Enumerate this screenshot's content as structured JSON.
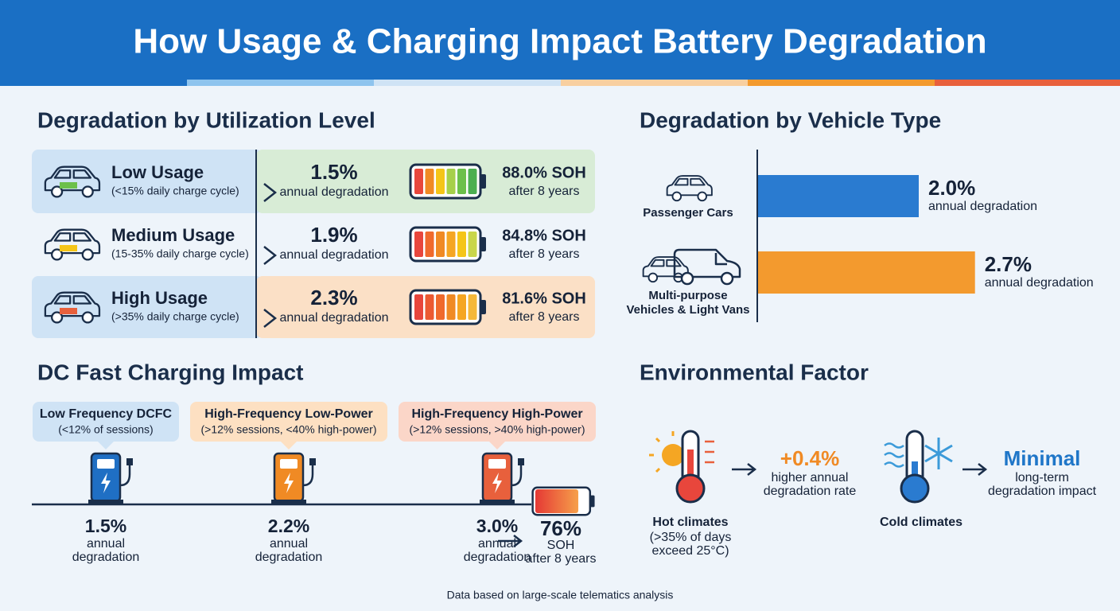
{
  "header": {
    "title": "How Usage & Charging Impact Battery Degradation"
  },
  "utilization": {
    "title": "Degradation by Utilization Level",
    "rows": [
      {
        "label": "Low Usage",
        "note": "(<15% daily charge cycle)",
        "rate": "1.5%",
        "rate_label": "annual degradation",
        "soh": "88.0% SOH",
        "soh_label": "after 8 years"
      },
      {
        "label": "Medium Usage",
        "note": "(15-35% daily charge cycle)",
        "rate": "1.9%",
        "rate_label": "annual degradation",
        "soh": "84.8% SOH",
        "soh_label": "after 8 years"
      },
      {
        "label": "High Usage",
        "note": "(>35% daily charge cycle)",
        "rate": "2.3%",
        "rate_label": "annual degradation",
        "soh": "81.6% SOH",
        "soh_label": "after 8 years"
      }
    ]
  },
  "chart_data": {
    "type": "bar",
    "orientation": "horizontal",
    "title": "Degradation by Vehicle Type",
    "categories": [
      [
        "Passenger Cars"
      ],
      [
        "Multi-purpose",
        "Vehicles & Light Vans"
      ]
    ],
    "values": [
      2.0,
      2.7
    ],
    "value_labels": [
      "2.0%",
      "2.7%"
    ],
    "value_notes": [
      "annual degradation",
      "annual degradation"
    ],
    "colors": [
      "#2a7bd0",
      "#f39a2e"
    ]
  },
  "dcfc": {
    "title": "DC Fast Charging Impact",
    "stations": [
      {
        "label": "Low Frequency DCFC",
        "note": "(<12% of sessions)",
        "rate": "1.5%",
        "rate_label": [
          "annual",
          "degradation"
        ]
      },
      {
        "label": "High-Frequency Low-Power",
        "note": "(>12% sessions, <40% high-power)",
        "rate": "2.2%",
        "rate_label": [
          "annual",
          "degradation"
        ]
      },
      {
        "label": "High-Frequency High-Power",
        "note": "(>12% sessions, >40% high-power)",
        "rate": "3.0%",
        "rate_label": [
          "annual",
          "degradation"
        ]
      }
    ],
    "result": {
      "value": "76%",
      "label": "SOH",
      "note": "after 8 years"
    }
  },
  "environment": {
    "title": "Environmental Factor",
    "hot": {
      "label": "Hot climates",
      "note": [
        "(>35% of days",
        "exceed 25°C)"
      ],
      "effect": "+0.4%",
      "effect_label": [
        "higher annual",
        "degradation rate"
      ]
    },
    "cold": {
      "label": "Cold climates",
      "effect": "Minimal",
      "effect_label": [
        "long-term",
        "degradation impact"
      ]
    }
  },
  "footer": {
    "text": "Data based on large-scale telematics analysis"
  }
}
